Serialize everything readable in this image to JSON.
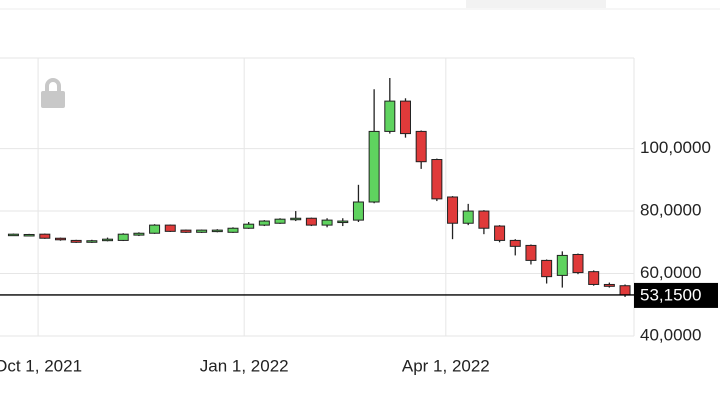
{
  "chart_data": {
    "type": "candlestick",
    "x": [
      "2021-09-20",
      "2021-09-27",
      "2021-10-04",
      "2021-10-11",
      "2021-10-18",
      "2021-10-25",
      "2021-11-01",
      "2021-11-08",
      "2021-11-15",
      "2021-11-22",
      "2021-11-29",
      "2021-12-06",
      "2021-12-13",
      "2021-12-20",
      "2021-12-27",
      "2022-01-03",
      "2022-01-10",
      "2022-01-17",
      "2022-01-24",
      "2022-01-31",
      "2022-02-07",
      "2022-02-14",
      "2022-02-21",
      "2022-02-28",
      "2022-03-07",
      "2022-03-14",
      "2022-03-21",
      "2022-03-28",
      "2022-04-04",
      "2022-04-11",
      "2022-04-18",
      "2022-04-25",
      "2022-05-02",
      "2022-05-09",
      "2022-05-16",
      "2022-05-23",
      "2022-05-30",
      "2022-06-06",
      "2022-06-13",
      "2022-06-20"
    ],
    "open": [
      72.6,
      72.5,
      72.6,
      71.3,
      70.6,
      70.0,
      70.6,
      70.6,
      72.3,
      72.9,
      75.5,
      73.9,
      73.2,
      73.5,
      73.2,
      74.5,
      75.5,
      76.1,
      77.4,
      77.7,
      75.5,
      76.5,
      77.1,
      82.9,
      105.5,
      115.2,
      105.5,
      96.5,
      84.5,
      76.1,
      80.0,
      75.2,
      70.6,
      69.0,
      64.2,
      59.4,
      66.1,
      60.6,
      56.5,
      56.1
    ],
    "high": [
      72.8,
      72.7,
      72.8,
      71.5,
      70.8,
      70.8,
      71.5,
      72.9,
      73.2,
      75.8,
      75.7,
      74.1,
      74.1,
      74.2,
      74.8,
      76.5,
      77.1,
      77.7,
      80.0,
      77.9,
      77.7,
      77.7,
      88.4,
      119.0,
      122.6,
      116.1,
      105.8,
      96.8,
      84.8,
      82.3,
      80.3,
      75.5,
      71.0,
      69.3,
      64.5,
      67.1,
      66.4,
      61.0,
      57.1,
      56.5
    ],
    "low": [
      72.4,
      72.3,
      71.1,
      70.5,
      69.8,
      69.8,
      70.3,
      70.4,
      72.0,
      72.7,
      73.3,
      73.0,
      73.0,
      73.2,
      73.0,
      74.3,
      75.2,
      75.9,
      76.8,
      75.2,
      74.8,
      75.2,
      76.5,
      82.5,
      104.8,
      103.5,
      93.5,
      83.2,
      71.0,
      75.5,
      72.6,
      70.0,
      65.8,
      62.9,
      56.8,
      55.5,
      59.8,
      56.1,
      55.5,
      52.5
    ],
    "close": [
      72.6,
      72.5,
      71.3,
      70.8,
      70.0,
      70.5,
      71.0,
      72.6,
      72.9,
      75.5,
      73.5,
      73.2,
      73.9,
      73.9,
      74.5,
      75.8,
      76.8,
      77.4,
      77.7,
      75.5,
      77.1,
      76.8,
      82.9,
      105.5,
      115.2,
      104.8,
      95.8,
      83.9,
      76.1,
      80.0,
      74.5,
      70.6,
      68.7,
      64.2,
      59.0,
      65.8,
      60.3,
      56.5,
      55.9,
      53.15
    ],
    "up_color": "#5fd35f",
    "down_color": "#e03a3a",
    "ylim": [
      40,
      129
    ],
    "yticks": [
      {
        "value": 40,
        "label": "40,0000"
      },
      {
        "value": 60,
        "label": "60,0000"
      },
      {
        "value": 80,
        "label": "80,0000"
      },
      {
        "value": 100,
        "label": "100,0000"
      }
    ],
    "xlim": [
      "2021-09-14",
      "2022-06-24"
    ],
    "xticks": [
      {
        "value": "2021-10-01",
        "label": "Oct 1, 2021"
      },
      {
        "value": "2022-01-01",
        "label": "Jan 1, 2022"
      },
      {
        "value": "2022-04-01",
        "label": "Apr 1, 2022"
      }
    ],
    "last_price": {
      "value": 53.15,
      "label": "53,1500"
    },
    "grid": true
  }
}
